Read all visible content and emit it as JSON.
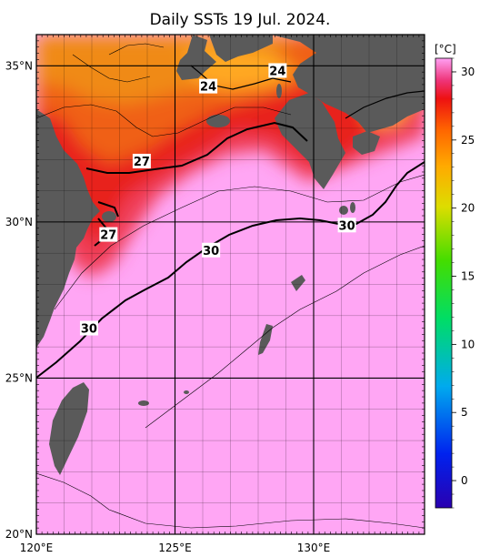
{
  "title": "Daily SSTs 19 Jul. 2024.",
  "colorbar": {
    "unit": "[°C]",
    "ticks": [
      "30",
      "25",
      "20",
      "15",
      "10",
      "5",
      "0"
    ],
    "tick_values": [
      30,
      25,
      20,
      15,
      10,
      5,
      0
    ],
    "min": -2,
    "max": 31,
    "colors": [
      "#2a00b0",
      "#0022ee",
      "#00aaee",
      "#00dd66",
      "#44dd00",
      "#dddd00",
      "#ffaa00",
      "#ff6600",
      "#ee1111",
      "#ee3377",
      "#ff88ee",
      "#ffa0f4"
    ]
  },
  "axes": {
    "lon_labels": [
      "120°E",
      "125°E",
      "130°E"
    ],
    "lat_labels": [
      "35°N",
      "30°N",
      "25°N",
      "20°N"
    ],
    "lon_range": [
      120,
      134
    ],
    "lat_range": [
      20,
      36
    ]
  },
  "contour_labels": [
    {
      "text": "24",
      "lon": 126.2,
      "lat": 34.35
    },
    {
      "text": "24",
      "lon": 128.7,
      "lat": 34.85
    },
    {
      "text": "27",
      "lon": 123.8,
      "lat": 31.95
    },
    {
      "text": "27",
      "lon": 122.6,
      "lat": 29.6
    },
    {
      "text": "30",
      "lon": 126.3,
      "lat": 29.1
    },
    {
      "text": "30",
      "lon": 131.2,
      "lat": 29.9
    },
    {
      "text": "30",
      "lon": 121.9,
      "lat": 26.6
    }
  ],
  "colors": {
    "land": "#5a5a5a",
    "sea_warm": "#ffa6f4",
    "sea_red": "#e8201c",
    "sea_orange": "#f07818",
    "grid": "#000000"
  }
}
